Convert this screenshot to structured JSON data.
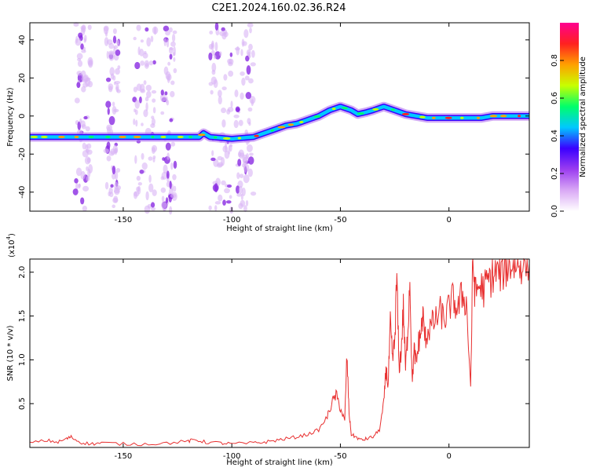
{
  "title": "C2E1.2024.160.02.36.R24",
  "chart_data": [
    {
      "type": "heatmap",
      "xlabel": "Height of straight line (km)",
      "ylabel": "Frequency (Hz)",
      "xlim": [
        -193,
        37
      ],
      "ylim": [
        -50,
        49
      ],
      "xticks": [
        -150,
        -100,
        -50,
        0
      ],
      "yticks": [
        -40,
        -20,
        0,
        20,
        40
      ],
      "colorbar": {
        "label": "Normalized spectral amplitude",
        "range": [
          0,
          1
        ],
        "ticks": [
          0.0,
          0.2,
          0.4,
          0.6,
          0.8
        ],
        "colors": [
          "#ffffff",
          "#d9a8f5",
          "#9b3df0",
          "#3a00ff",
          "#00c8ff",
          "#00ff6a",
          "#c8ff00",
          "#ffa000",
          "#ff2020",
          "#ff0090"
        ]
      },
      "ridge": [
        {
          "x": -193,
          "y": -11
        },
        {
          "x": -150,
          "y": -11
        },
        {
          "x": -115,
          "y": -11
        },
        {
          "x": -113,
          "y": -9
        },
        {
          "x": -110,
          "y": -11
        },
        {
          "x": -100,
          "y": -12
        },
        {
          "x": -90,
          "y": -11
        },
        {
          "x": -85,
          "y": -9
        },
        {
          "x": -80,
          "y": -7
        },
        {
          "x": -75,
          "y": -5
        },
        {
          "x": -70,
          "y": -4
        },
        {
          "x": -65,
          "y": -2
        },
        {
          "x": -60,
          "y": 0
        },
        {
          "x": -55,
          "y": 3
        },
        {
          "x": -50,
          "y": 5
        },
        {
          "x": -45,
          "y": 3
        },
        {
          "x": -42,
          "y": 1
        },
        {
          "x": -38,
          "y": 2
        },
        {
          "x": -35,
          "y": 3
        },
        {
          "x": -30,
          "y": 5
        },
        {
          "x": -25,
          "y": 3
        },
        {
          "x": -20,
          "y": 1
        },
        {
          "x": -15,
          "y": 0
        },
        {
          "x": -10,
          "y": -1
        },
        {
          "x": -5,
          "y": -1
        },
        {
          "x": 0,
          "y": -1
        },
        {
          "x": 5,
          "y": -1
        },
        {
          "x": 10,
          "y": -1
        },
        {
          "x": 15,
          "y": -1
        },
        {
          "x": 20,
          "y": 0
        },
        {
          "x": 25,
          "y": 0
        },
        {
          "x": 30,
          "y": 0
        },
        {
          "x": 37,
          "y": 0
        }
      ],
      "noise_bands": [
        {
          "x0": -172,
          "x1": -165
        },
        {
          "x0": -158,
          "x1": -152
        },
        {
          "x0": -145,
          "x1": -135
        },
        {
          "x0": -132,
          "x1": -126
        },
        {
          "x0": -110,
          "x1": -100
        },
        {
          "x0": -98,
          "x1": -90
        }
      ]
    },
    {
      "type": "line",
      "xlabel": "Height of straight line (km)",
      "ylabel": "SNR (10 * v/v)",
      "multiplier_label": "(x10",
      "multiplier_exp": "4",
      "multiplier_close": ")",
      "xlim": [
        -193,
        37
      ],
      "ylim": [
        0,
        2.15
      ],
      "xticks": [
        -150,
        -100,
        -50,
        0
      ],
      "yticks": [
        0.5,
        1.0,
        1.5,
        2.0
      ],
      "color": "#e83030",
      "x": [
        -193,
        -185,
        -180,
        -176,
        -174,
        -170,
        -165,
        -160,
        -150,
        -140,
        -130,
        -120,
        -117,
        -112,
        -105,
        -100,
        -90,
        -85,
        -80,
        -75,
        -70,
        -65,
        -60,
        -56,
        -54,
        -52,
        -50,
        -48,
        -47,
        -46,
        -45,
        -43,
        -40,
        -38,
        -35,
        -32,
        -30,
        -29,
        -28,
        -27,
        -26,
        -25,
        -24,
        -23,
        -22,
        -21,
        -20,
        -19,
        -18,
        -17,
        -16,
        -15,
        -14,
        -13,
        -12,
        -11,
        -10,
        -8,
        -6,
        -4,
        -2,
        0,
        2,
        4,
        6,
        8,
        10,
        11,
        12,
        14,
        16,
        18,
        20,
        22,
        24,
        26,
        28,
        30,
        32,
        34,
        37
      ],
      "y": [
        0.05,
        0.08,
        0.06,
        0.1,
        0.12,
        0.06,
        0.04,
        0.05,
        0.04,
        0.04,
        0.05,
        0.07,
        0.09,
        0.06,
        0.05,
        0.04,
        0.05,
        0.06,
        0.08,
        0.1,
        0.12,
        0.15,
        0.2,
        0.35,
        0.5,
        0.6,
        0.45,
        0.3,
        1.05,
        0.4,
        0.15,
        0.12,
        0.08,
        0.1,
        0.12,
        0.2,
        0.5,
        0.9,
        0.7,
        1.4,
        1.0,
        1.2,
        1.95,
        0.9,
        1.1,
        1.6,
        0.9,
        1.3,
        1.95,
        0.75,
        1.1,
        0.95,
        1.2,
        1.3,
        1.5,
        1.25,
        1.3,
        1.4,
        1.45,
        1.55,
        1.45,
        1.6,
        1.7,
        1.55,
        1.75,
        1.65,
        0.7,
        2.15,
        1.75,
        1.85,
        1.8,
        1.9,
        1.95,
        2.0,
        1.98,
        2.05,
        2.08,
        2.1,
        2.07,
        2.12,
        2.1
      ]
    }
  ]
}
